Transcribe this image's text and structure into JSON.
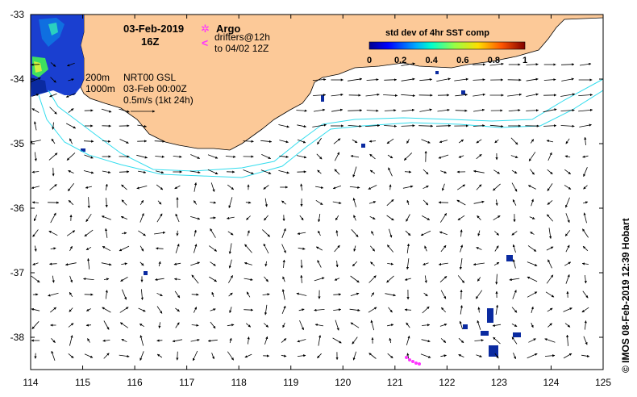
{
  "map": {
    "region": "South-west Australia, Great Australian Bight",
    "lon_range": [
      114,
      125
    ],
    "lat_range": [
      -38.5,
      -33
    ],
    "lon_ticks": [
      "114",
      "115",
      "116",
      "117",
      "118",
      "119",
      "120",
      "121",
      "122",
      "123",
      "124",
      "125"
    ],
    "lat_ticks": [
      "-33",
      "-34",
      "-35",
      "-36",
      "-37",
      "-38"
    ],
    "land_color": "#fcc998",
    "sea_color": "#ffffff",
    "contour_color": "#33ddee",
    "arrow_color": "#000000",
    "argo_color": "#ff33ff"
  },
  "header": {
    "date": "03-Feb-2019",
    "time": "16Z"
  },
  "legend": {
    "argo_label": "Argo",
    "drifters_label": "drifters@12h",
    "drifters_sub": "to 04/02 12Z",
    "argo_icon": "star-icon",
    "drifter_icon": "chevron-left-icon"
  },
  "contours": {
    "label_200": "200m",
    "label_1000": "1000m"
  },
  "velocity": {
    "product": "NRT00 GSL",
    "time": "03-Feb 00:00Z",
    "scale": "0.5m/s (1kt 24h)"
  },
  "colorbar": {
    "title": "std dev of 4hr SST comp",
    "ticks": [
      "0",
      "0.2",
      "0.4",
      "0.6",
      "0.8",
      "1"
    ]
  },
  "credit": "© IMOS 08-Feb-2019 12:39 Hobart"
}
